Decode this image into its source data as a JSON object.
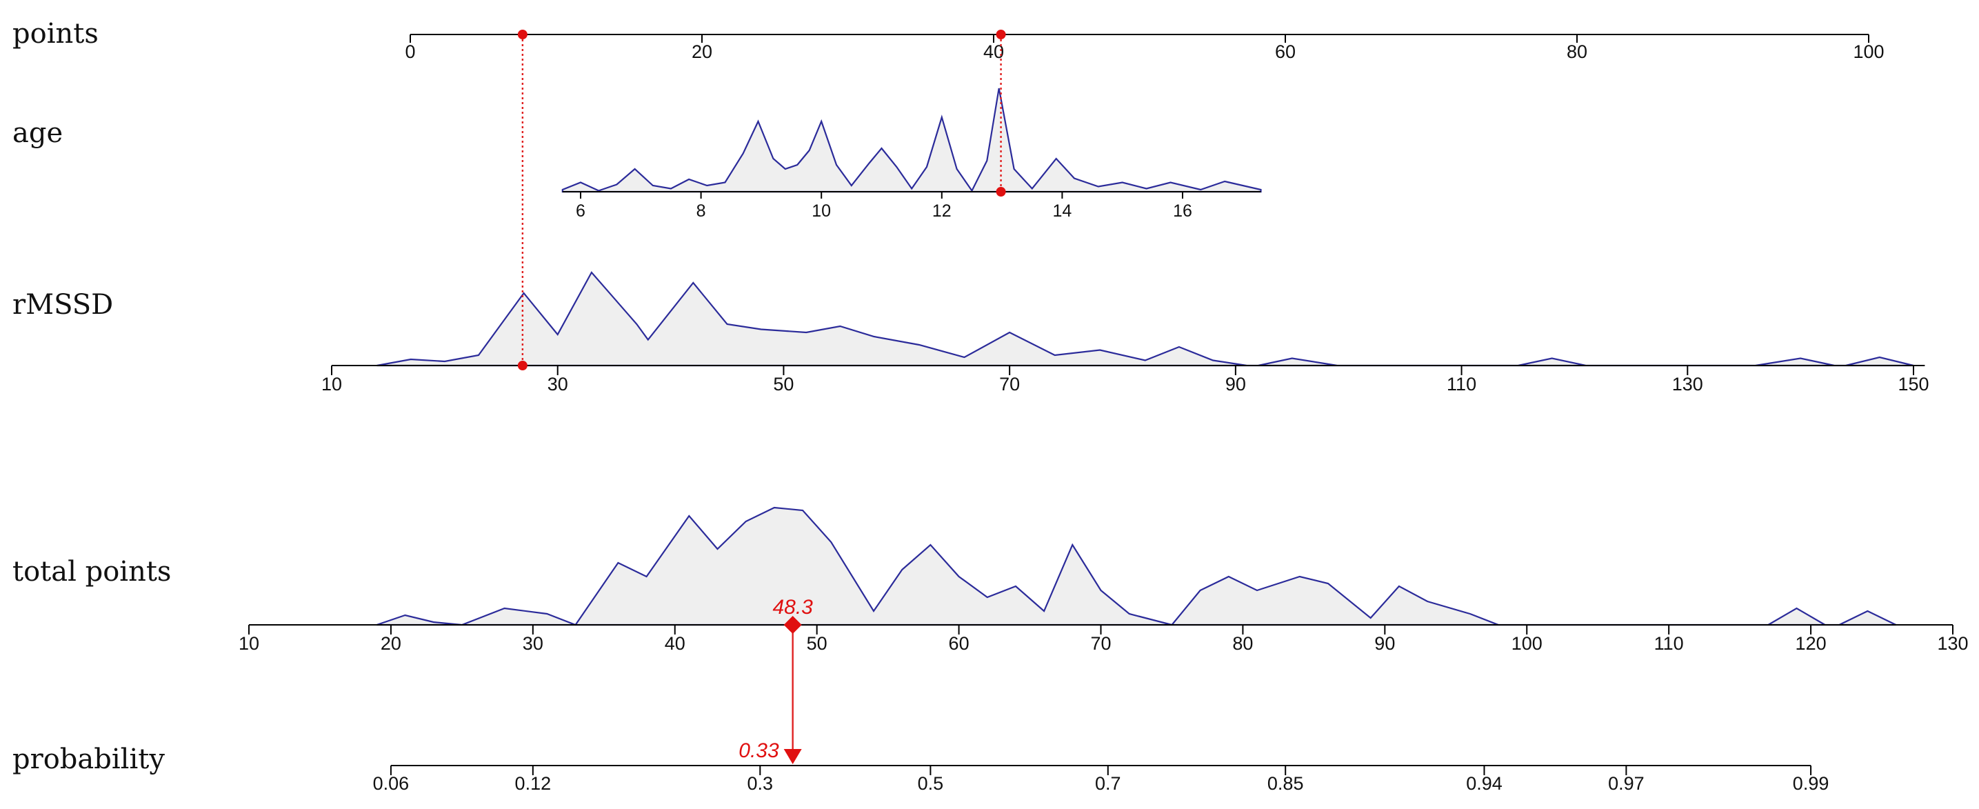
{
  "chart_data": {
    "type": "nomogram",
    "colors": {
      "density_stroke": "#2b2b9a",
      "density_fill": "#efefef",
      "marker": "#e01010",
      "axis": "#000000"
    },
    "rows": [
      {
        "key": "points",
        "label": "points",
        "ticks": [
          "0",
          "20",
          "40",
          "60",
          "80",
          "100"
        ],
        "range": [
          0,
          100
        ]
      },
      {
        "key": "age",
        "label": "age",
        "ticks": [
          "6",
          "8",
          "10",
          "12",
          "14",
          "16"
        ],
        "range": [
          5.7,
          17.3
        ],
        "density": [
          [
            5.7,
            0.02
          ],
          [
            6.0,
            0.09
          ],
          [
            6.3,
            0.01
          ],
          [
            6.6,
            0.07
          ],
          [
            6.9,
            0.22
          ],
          [
            7.2,
            0.06
          ],
          [
            7.5,
            0.03
          ],
          [
            7.8,
            0.12
          ],
          [
            8.1,
            0.06
          ],
          [
            8.4,
            0.09
          ],
          [
            8.7,
            0.37
          ],
          [
            8.95,
            0.68
          ],
          [
            9.2,
            0.32
          ],
          [
            9.4,
            0.22
          ],
          [
            9.6,
            0.26
          ],
          [
            9.8,
            0.4
          ],
          [
            10.0,
            0.68
          ],
          [
            10.25,
            0.26
          ],
          [
            10.5,
            0.06
          ],
          [
            10.8,
            0.28
          ],
          [
            11.0,
            0.42
          ],
          [
            11.25,
            0.24
          ],
          [
            11.5,
            0.03
          ],
          [
            11.75,
            0.24
          ],
          [
            12.0,
            0.72
          ],
          [
            12.25,
            0.22
          ],
          [
            12.5,
            0.01
          ],
          [
            12.75,
            0.3
          ],
          [
            12.95,
            1.0
          ],
          [
            13.2,
            0.22
          ],
          [
            13.5,
            0.03
          ],
          [
            13.9,
            0.32
          ],
          [
            14.2,
            0.13
          ],
          [
            14.6,
            0.05
          ],
          [
            15.0,
            0.09
          ],
          [
            15.4,
            0.03
          ],
          [
            15.8,
            0.09
          ],
          [
            16.3,
            0.02
          ],
          [
            16.7,
            0.1
          ],
          [
            17.3,
            0.02
          ]
        ]
      },
      {
        "key": "rMSSD",
        "label": "rMSSD",
        "ticks": [
          "10",
          "30",
          "50",
          "70",
          "90",
          "110",
          "130",
          "150"
        ],
        "range": [
          10,
          150
        ],
        "density": [
          [
            14,
            0.0
          ],
          [
            17,
            0.06
          ],
          [
            20,
            0.04
          ],
          [
            23,
            0.1
          ],
          [
            27,
            0.7
          ],
          [
            30,
            0.3
          ],
          [
            33,
            0.9
          ],
          [
            37,
            0.4
          ],
          [
            38,
            0.25
          ],
          [
            42,
            0.8
          ],
          [
            45,
            0.4
          ],
          [
            48,
            0.35
          ],
          [
            52,
            0.32
          ],
          [
            55,
            0.38
          ],
          [
            58,
            0.28
          ],
          [
            62,
            0.2
          ],
          [
            66,
            0.08
          ],
          [
            70,
            0.32
          ],
          [
            74,
            0.1
          ],
          [
            78,
            0.15
          ],
          [
            82,
            0.05
          ],
          [
            85,
            0.18
          ],
          [
            88,
            0.05
          ],
          [
            91,
            0.0
          ],
          [
            92,
            0.0
          ],
          [
            95,
            0.07
          ],
          [
            99,
            0.0
          ],
          [
            115,
            0.0
          ],
          [
            118,
            0.07
          ],
          [
            121,
            0.0
          ],
          [
            136,
            0.0
          ],
          [
            140,
            0.07
          ],
          [
            143,
            0.0
          ],
          [
            144,
            0.0
          ],
          [
            147,
            0.08
          ],
          [
            150,
            0.0
          ]
        ]
      },
      {
        "key": "total_points",
        "label": "total points",
        "ticks": [
          "10",
          "20",
          "30",
          "40",
          "50",
          "60",
          "70",
          "80",
          "90",
          "100",
          "110",
          "120",
          "130"
        ],
        "range": [
          10,
          130
        ],
        "density": [
          [
            19,
            0.0
          ],
          [
            21,
            0.07
          ],
          [
            23,
            0.02
          ],
          [
            25,
            0.0
          ],
          [
            28,
            0.12
          ],
          [
            31,
            0.08
          ],
          [
            33,
            0.0
          ],
          [
            36,
            0.45
          ],
          [
            38,
            0.35
          ],
          [
            41,
            0.79
          ],
          [
            43,
            0.55
          ],
          [
            45,
            0.75
          ],
          [
            47,
            0.85
          ],
          [
            49,
            0.83
          ],
          [
            51,
            0.6
          ],
          [
            54,
            0.1
          ],
          [
            56,
            0.4
          ],
          [
            58,
            0.58
          ],
          [
            60,
            0.35
          ],
          [
            62,
            0.2
          ],
          [
            64,
            0.28
          ],
          [
            66,
            0.1
          ],
          [
            68,
            0.58
          ],
          [
            70,
            0.25
          ],
          [
            72,
            0.08
          ],
          [
            75,
            0.0
          ],
          [
            77,
            0.25
          ],
          [
            79,
            0.35
          ],
          [
            81,
            0.25
          ],
          [
            84,
            0.35
          ],
          [
            86,
            0.3
          ],
          [
            89,
            0.05
          ],
          [
            91,
            0.28
          ],
          [
            93,
            0.17
          ],
          [
            96,
            0.08
          ],
          [
            98,
            0.0
          ],
          [
            117,
            0.0
          ],
          [
            119,
            0.12
          ],
          [
            121,
            0.0
          ],
          [
            122,
            0.0
          ],
          [
            124,
            0.1
          ],
          [
            126,
            0.0
          ]
        ]
      },
      {
        "key": "probability",
        "label": "probability",
        "ticks": [
          "0.06",
          "0.12",
          "0.3",
          "0.5",
          "0.7",
          "0.85",
          "0.94",
          "0.97",
          "0.99"
        ],
        "tick_positions_total_points": [
          20,
          30,
          46,
          58,
          70.5,
          83,
          97,
          107,
          120
        ]
      }
    ],
    "observation": {
      "age": 13,
      "rMSSD": 27,
      "age_points": 40.5,
      "rMSSD_points": 7.7,
      "total_points": 48.3,
      "total_points_label": "48.3",
      "probability": 0.33,
      "probability_label": "0.33"
    }
  }
}
